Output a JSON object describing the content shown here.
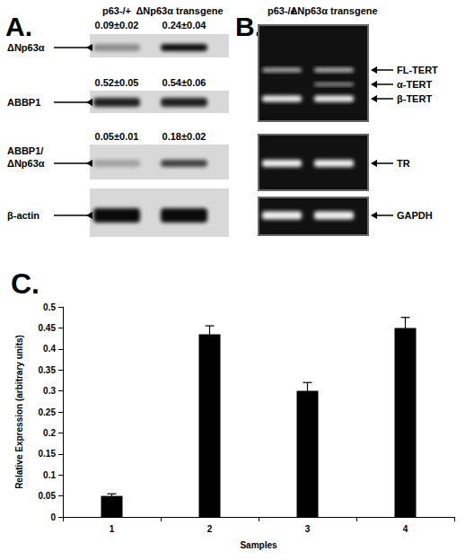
{
  "panel_a": {
    "label": "A.",
    "columns": [
      "p63-/+",
      "ΔNp63α transgene"
    ],
    "rows": [
      {
        "label": [
          "ΔNp63α"
        ],
        "values": [
          "0.09±0.02",
          "0.24±0.04"
        ]
      },
      {
        "label": [
          "ABBP1"
        ],
        "values": [
          "0.52±0.05",
          "0.54±0.06"
        ]
      },
      {
        "label": [
          "ABBP1/",
          "ΔNp63α"
        ],
        "values": [
          "0.05±0.01",
          "0.18±0.02"
        ]
      },
      {
        "label": [
          "β-actin"
        ],
        "values": []
      }
    ]
  },
  "panel_b": {
    "label": "B.",
    "columns": [
      "p63-/+",
      "ΔNp63α transgene"
    ],
    "boxes": [
      [
        "FL-TERT",
        "α-TERT",
        "β-TERT"
      ],
      [
        "TR"
      ],
      [
        "GAPDH"
      ]
    ]
  },
  "panel_c": {
    "label": "C."
  },
  "chart_data": {
    "type": "bar",
    "x_label": "Samples",
    "y_label": "Relative Expression (arbitrary units)",
    "categories": [
      "1",
      "2",
      "3",
      "4"
    ],
    "values": [
      0.05,
      0.435,
      0.3,
      0.45
    ],
    "errors": [
      0.005,
      0.02,
      0.02,
      0.025
    ],
    "color": "#000000",
    "ylim": [
      0,
      0.5
    ],
    "yticks": [
      0,
      0.05,
      0.1,
      0.15,
      0.2,
      0.25,
      0.3,
      0.35,
      0.4,
      0.45,
      0.5
    ],
    "grid": false
  }
}
